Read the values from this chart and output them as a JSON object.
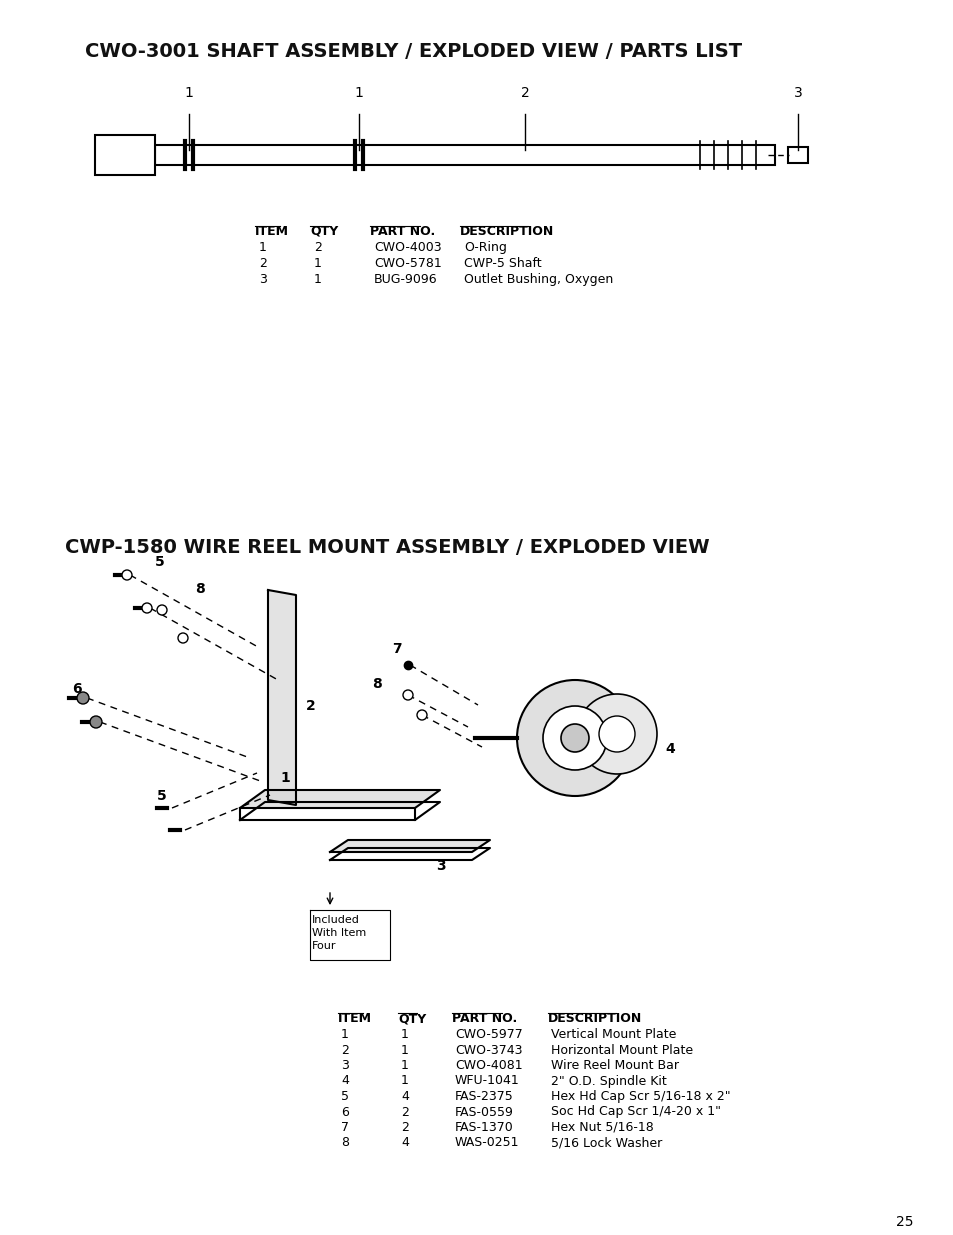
{
  "bg_color": "#ffffff",
  "page_num": "25",
  "title1": "CWO-3001 SHAFT ASSEMBLY / EXPLODED VIEW / PARTS LIST",
  "title2": "CWP-1580 WIRE REEL MOUNT ASSEMBLY / EXPLODED VIEW",
  "table1_headers": [
    "ITEM",
    "QTY",
    "PART NO.",
    "DESCRIPTION"
  ],
  "table1_rows": [
    [
      "1",
      "2",
      "CWO-4003",
      "O-Ring"
    ],
    [
      "2",
      "1",
      "CWO-5781",
      "CWP-5 Shaft"
    ],
    [
      "3",
      "1",
      "BUG-9096",
      "Outlet Bushing, Oxygen"
    ]
  ],
  "table2_headers": [
    "ITEM",
    "QTY",
    "PART NO.",
    "DESCRIPTION"
  ],
  "table2_rows": [
    [
      "1",
      "1",
      "CWO-5977",
      "Vertical Mount Plate"
    ],
    [
      "2",
      "1",
      "CWO-3743",
      "Horizontal Mount Plate"
    ],
    [
      "3",
      "1",
      "CWO-4081",
      "Wire Reel Mount Bar"
    ],
    [
      "4",
      "1",
      "WFU-1041",
      "2\" O.D. Spindle Kit"
    ],
    [
      "5",
      "4",
      "FAS-2375",
      "Hex Hd Cap Scr 5/16-18 x 2\""
    ],
    [
      "6",
      "2",
      "FAS-0559",
      "Soc Hd Cap Scr 1/4-20 x 1\""
    ],
    [
      "7",
      "2",
      "FAS-1370",
      "Hex Nut 5/16-18"
    ],
    [
      "8",
      "4",
      "WAS-0251",
      "5/16 Lock Washer"
    ]
  ],
  "included_note": "Included\nWith Item\nFour"
}
